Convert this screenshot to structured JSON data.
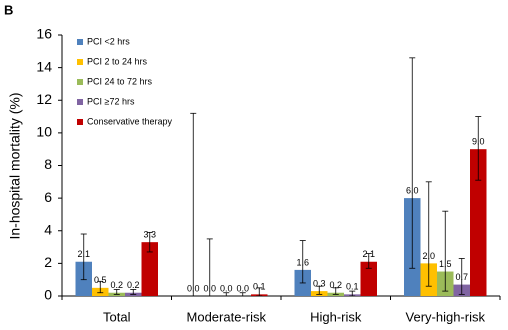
{
  "chart_data": {
    "type": "bar",
    "panel_label": "B",
    "y_label": "In-hospital mortality (%)",
    "categories": [
      "Total",
      "Moderate-risk",
      "High-risk",
      "Very-high-risk"
    ],
    "ylim": [
      0,
      16
    ],
    "yticks": [
      0,
      2,
      4,
      6,
      8,
      10,
      12,
      14,
      16
    ],
    "series": [
      {
        "name": "PCI <2 hrs",
        "color": "#4f81bd",
        "values": [
          2.1,
          0,
          1.6,
          6
        ],
        "value_labels": [
          "2.1",
          "0.0",
          "1.6",
          "6.0"
        ],
        "ci_low": [
          1.0,
          0,
          0.8,
          1.7
        ],
        "ci_high": [
          3.8,
          11.2,
          3.4,
          14.6
        ]
      },
      {
        "name": "PCI  2 to 24 hrs",
        "color": "#ffc000",
        "values": [
          0.5,
          0,
          0.3,
          2
        ],
        "value_labels": [
          "0.5",
          "0.0",
          "0.3",
          "2.0"
        ],
        "ci_low": [
          0.2,
          0,
          0.1,
          0.6
        ],
        "ci_high": [
          0.9,
          3.5,
          0.6,
          7.0
        ]
      },
      {
        "name": "PCI  24 to 72 hrs",
        "color": "#9bbb59",
        "values": [
          0.2,
          0,
          0.2,
          1.5
        ],
        "value_labels": [
          "0.2",
          "0.0",
          "0.2",
          "1.5"
        ],
        "ci_low": [
          0.1,
          0,
          0.1,
          0.3
        ],
        "ci_high": [
          0.4,
          0.2,
          0.5,
          5.2
        ]
      },
      {
        "name": "PCI ≥72 hrs",
        "color": "#8064a2",
        "values": [
          0.2,
          0,
          0.1,
          0.7
        ],
        "value_labels": [
          "0.2",
          "0.0",
          "0.1",
          "0.7"
        ],
        "ci_low": [
          0.1,
          0,
          0.0,
          0.1
        ],
        "ci_high": [
          0.4,
          0.2,
          0.3,
          2.3
        ]
      },
      {
        "name": "Conservative therapy",
        "color": "#c00000",
        "values": [
          3.3,
          0.1,
          2.1,
          9
        ],
        "value_labels": [
          "3.3",
          "0.1",
          "2.1",
          "9.0"
        ],
        "ci_low": [
          2.7,
          0,
          1.7,
          7.1
        ],
        "ci_high": [
          3.9,
          0.5,
          2.6,
          11.0
        ]
      }
    ]
  }
}
